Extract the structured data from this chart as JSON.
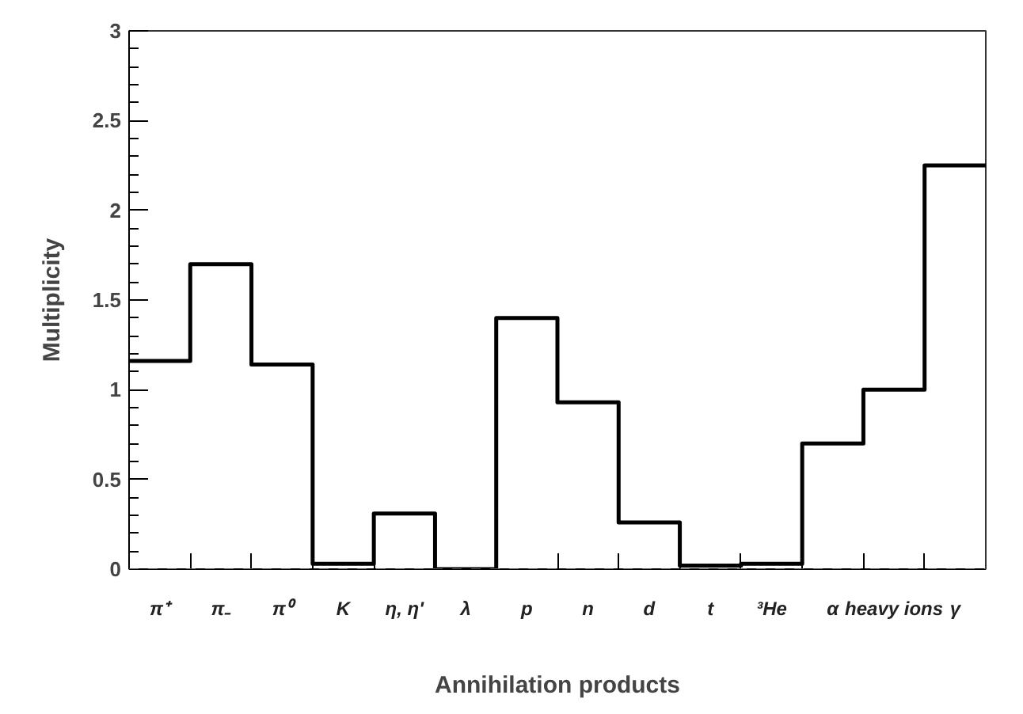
{
  "chart_data": {
    "type": "step",
    "xlabel": "Annihilation products",
    "ylabel": "Multiplicity",
    "categories": [
      "π⁺",
      "π₋",
      "π⁰",
      "K",
      "η, η'",
      "λ",
      "p",
      "n",
      "d",
      "t",
      "³He",
      "α",
      "heavy ions",
      "γ"
    ],
    "values": [
      1.16,
      1.7,
      1.14,
      0.03,
      0.31,
      0.0,
      1.4,
      0.93,
      0.26,
      0.02,
      0.03,
      0.7,
      1.0,
      2.25
    ],
    "color": "#000000",
    "ylim": [
      0,
      3
    ],
    "yticks": [
      0,
      0.5,
      1,
      1.5,
      2,
      2.5,
      3
    ],
    "ref_lines": [
      {
        "axis": "y",
        "value": 0,
        "line_style": "dashed",
        "color": "#555555"
      }
    ],
    "grid": false,
    "legend": false
  }
}
